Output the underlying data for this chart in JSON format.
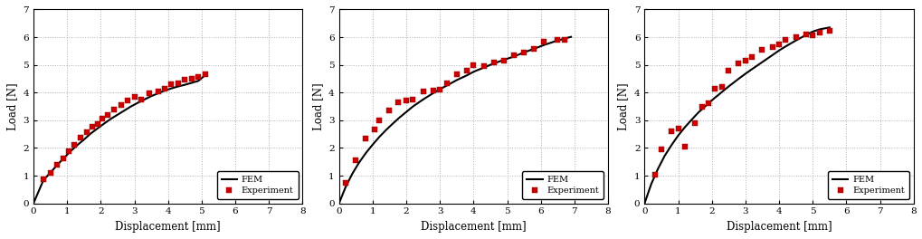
{
  "charts": [
    {
      "fem_x": [
        0,
        0.3,
        0.5,
        0.7,
        0.9,
        1.1,
        1.3,
        1.5,
        1.7,
        1.9,
        2.1,
        2.3,
        2.5,
        2.7,
        2.9,
        3.1,
        3.3,
        3.5,
        3.7,
        3.9,
        4.1,
        4.3,
        4.5,
        4.7,
        4.9,
        5.1
      ],
      "fem_y": [
        0,
        0.85,
        1.1,
        1.38,
        1.63,
        1.88,
        2.1,
        2.3,
        2.52,
        2.7,
        2.88,
        3.05,
        3.2,
        3.35,
        3.5,
        3.63,
        3.75,
        3.87,
        3.97,
        4.07,
        4.15,
        4.22,
        4.28,
        4.35,
        4.42,
        4.62
      ],
      "exp_x": [
        0.3,
        0.5,
        0.7,
        0.9,
        1.05,
        1.2,
        1.4,
        1.6,
        1.75,
        1.9,
        2.05,
        2.2,
        2.4,
        2.6,
        2.8,
        3.0,
        3.2,
        3.45,
        3.7,
        3.9,
        4.1,
        4.3,
        4.5,
        4.7,
        4.9,
        5.1
      ],
      "exp_y": [
        0.88,
        1.1,
        1.38,
        1.62,
        1.88,
        2.12,
        2.38,
        2.58,
        2.75,
        2.88,
        3.05,
        3.2,
        3.38,
        3.55,
        3.72,
        3.85,
        3.75,
        3.97,
        4.05,
        4.15,
        4.3,
        4.35,
        4.48,
        4.5,
        4.55,
        4.65
      ],
      "xlabel": "Displacement [mm]",
      "ylabel": "Load [N]",
      "xlim": [
        0,
        8
      ],
      "ylim": [
        0,
        7
      ],
      "xticks": [
        0,
        1,
        2,
        3,
        4,
        5,
        6,
        7,
        8
      ],
      "yticks": [
        0,
        1,
        2,
        3,
        4,
        5,
        6,
        7
      ]
    },
    {
      "fem_x": [
        0,
        0.2,
        0.4,
        0.6,
        0.8,
        1.0,
        1.2,
        1.4,
        1.6,
        1.8,
        2.0,
        2.2,
        2.5,
        2.8,
        3.0,
        3.2,
        3.5,
        3.8,
        4.0,
        4.3,
        4.6,
        4.9,
        5.2,
        5.5,
        5.8,
        6.1,
        6.4,
        6.7,
        6.9
      ],
      "fem_y": [
        0,
        0.6,
        1.08,
        1.48,
        1.82,
        2.12,
        2.4,
        2.65,
        2.88,
        3.1,
        3.3,
        3.5,
        3.75,
        3.98,
        4.12,
        4.25,
        4.45,
        4.62,
        4.75,
        4.9,
        5.05,
        5.18,
        5.3,
        5.45,
        5.58,
        5.72,
        5.84,
        5.95,
        6.01
      ],
      "exp_x": [
        0.2,
        0.5,
        0.8,
        1.05,
        1.2,
        1.5,
        1.75,
        2.0,
        2.2,
        2.5,
        2.8,
        3.0,
        3.2,
        3.5,
        3.8,
        4.0,
        4.3,
        4.6,
        4.9,
        5.2,
        5.5,
        5.8,
        6.1,
        6.5,
        6.7
      ],
      "exp_y": [
        0.75,
        1.55,
        2.35,
        2.68,
        3.0,
        3.35,
        3.65,
        3.7,
        3.75,
        4.05,
        4.08,
        4.12,
        4.35,
        4.65,
        4.78,
        5.0,
        4.95,
        5.1,
        5.15,
        5.35,
        5.45,
        5.58,
        5.85,
        5.9,
        5.9
      ],
      "xlabel": "Displacement [mm]",
      "ylabel": "Load [N]",
      "xlim": [
        0,
        8
      ],
      "ylim": [
        0,
        7
      ],
      "xticks": [
        0,
        1,
        2,
        3,
        4,
        5,
        6,
        7,
        8
      ],
      "yticks": [
        0,
        1,
        2,
        3,
        4,
        5,
        6,
        7
      ]
    },
    {
      "fem_x": [
        0,
        0.2,
        0.4,
        0.6,
        0.8,
        1.0,
        1.2,
        1.4,
        1.6,
        1.8,
        2.0,
        2.2,
        2.5,
        2.8,
        3.0,
        3.2,
        3.5,
        3.8,
        4.0,
        4.2,
        4.5,
        4.8,
        5.0,
        5.2,
        5.5
      ],
      "fem_y": [
        0,
        0.7,
        1.25,
        1.72,
        2.1,
        2.45,
        2.75,
        3.02,
        3.28,
        3.5,
        3.72,
        3.92,
        4.22,
        4.5,
        4.68,
        4.85,
        5.1,
        5.35,
        5.52,
        5.67,
        5.88,
        6.08,
        6.2,
        6.28,
        6.35
      ],
      "exp_x": [
        0.3,
        0.5,
        0.8,
        1.0,
        1.2,
        1.5,
        1.7,
        1.9,
        2.1,
        2.3,
        2.5,
        2.8,
        3.0,
        3.2,
        3.5,
        3.8,
        4.0,
        4.2,
        4.5,
        4.8,
        5.0,
        5.2,
        5.5
      ],
      "exp_y": [
        1.05,
        1.95,
        2.6,
        2.7,
        2.05,
        2.9,
        3.5,
        3.6,
        4.15,
        4.22,
        4.78,
        5.05,
        5.15,
        5.28,
        5.55,
        5.65,
        5.75,
        5.9,
        6.0,
        6.1,
        6.08,
        6.18,
        6.22
      ],
      "xlabel": "Displacement [mm]",
      "ylabel": "Load [N]",
      "xlim": [
        0,
        8
      ],
      "ylim": [
        0,
        7
      ],
      "xticks": [
        0,
        1,
        2,
        3,
        4,
        5,
        6,
        7,
        8
      ],
      "yticks": [
        0,
        1,
        2,
        3,
        4,
        5,
        6,
        7
      ]
    }
  ],
  "fem_color": "#000000",
  "exp_color": "#cc0000",
  "fem_label": "FEM",
  "exp_label": "Experiment",
  "fem_linewidth": 1.5,
  "exp_markersize": 4.5,
  "background_color": "#ffffff",
  "grid_color": "#b0b0b0",
  "grid_linestyle": ":"
}
